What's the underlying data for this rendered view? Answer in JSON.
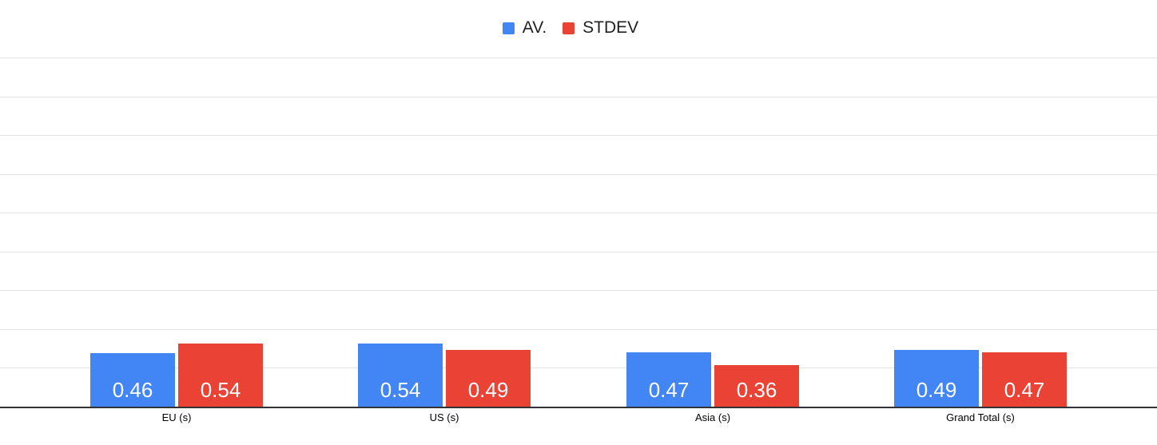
{
  "chart_data": {
    "type": "bar",
    "title": "",
    "categories": [
      "EU (s)",
      "US (s)",
      "Asia (s)",
      "Grand Total (s)"
    ],
    "series": [
      {
        "name": "AV.",
        "color": "#4285F4",
        "values": [
          0.46,
          0.54,
          0.47,
          0.49
        ]
      },
      {
        "name": "STDEV",
        "color": "#EA4335",
        "values": [
          0.54,
          0.49,
          0.36,
          0.47
        ]
      }
    ],
    "value_labels_shown": true,
    "value_label_decimals": 2,
    "ylim": [
      0,
      3
    ],
    "grid": true,
    "gridline_count": 9,
    "legend_position": "top",
    "x_tick_labels": [
      "EU (s)",
      "US (s)",
      "Asia (s)",
      "Grand Total (s)"
    ],
    "colors": {
      "background": "#ffffff",
      "gridline": "#e3e3e3",
      "axis_line": "#333333",
      "value_label_text": "#ffffff",
      "category_label_text": "#000000",
      "legend_text": "#212121"
    }
  }
}
